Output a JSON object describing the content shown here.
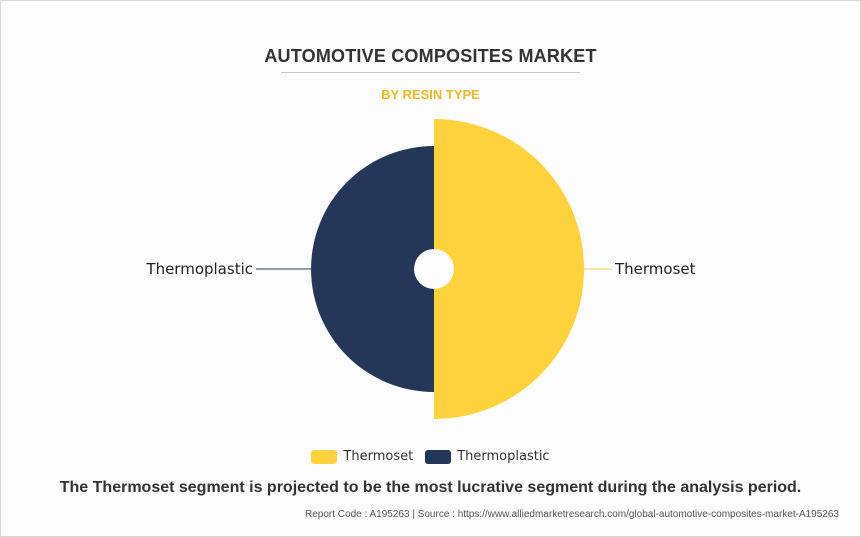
{
  "title": "AUTOMOTIVE COMPOSITES MARKET",
  "subtitle": "BY RESIN TYPE",
  "caption": "The Thermoset segment is projected to be the most lucrative segment during the analysis period.",
  "footer": "Report Code : A195263  |  Source : https://www.alliedmarketresearch.com/global-automotive-composites-market-A195263",
  "colors": {
    "thermoset": "#fdd23d",
    "thermoplastic": "#253759",
    "subtitle": "#f2b824"
  },
  "chart_data": {
    "type": "pie",
    "variant": "rose-donut",
    "categories": [
      "Thermoset",
      "Thermoplastic"
    ],
    "values": [
      50,
      50
    ],
    "relative_radius": [
      1.0,
      0.82
    ],
    "legend_position": "bottom",
    "legend": [
      "Thermoset",
      "Thermoplastic"
    ]
  }
}
